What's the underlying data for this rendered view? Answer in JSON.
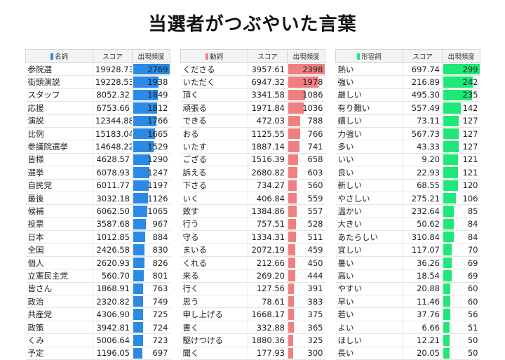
{
  "title": "当選者がつぶやいた言葉",
  "chart_data": [
    {
      "type": "table",
      "headers": [
        "名詞",
        "スコア",
        "出現頻度"
      ],
      "color": "#2a8ae6",
      "rows": [
        {
          "word": "参院選",
          "score": "19928.73",
          "freq": 2769
        },
        {
          "word": "街頭演説",
          "score": "19228.53",
          "freq": 1938
        },
        {
          "word": "スタッフ",
          "score": "8052.32",
          "freq": 1849
        },
        {
          "word": "応援",
          "score": "6753.66",
          "freq": 1812
        },
        {
          "word": "演説",
          "score": "12344.88",
          "freq": 1766
        },
        {
          "word": "比例",
          "score": "15183.04",
          "freq": 1665
        },
        {
          "word": "参議院選挙",
          "score": "14648.22",
          "freq": 1529
        },
        {
          "word": "皆様",
          "score": "4628.57",
          "freq": 1290
        },
        {
          "word": "選挙",
          "score": "6078.93",
          "freq": 1247
        },
        {
          "word": "自民党",
          "score": "6011.77",
          "freq": 1197
        },
        {
          "word": "最後",
          "score": "3032.18",
          "freq": 1126
        },
        {
          "word": "候補",
          "score": "6062.50",
          "freq": 1065
        },
        {
          "word": "投票",
          "score": "3587.68",
          "freq": 967
        },
        {
          "word": "日本",
          "score": "1012.85",
          "freq": 884
        },
        {
          "word": "全国",
          "score": "2426.58",
          "freq": 830
        },
        {
          "word": "個人",
          "score": "2620.93",
          "freq": 826
        },
        {
          "word": "立憲民主党",
          "score": "560.70",
          "freq": 801
        },
        {
          "word": "皆さん",
          "score": "1868.91",
          "freq": 763
        },
        {
          "word": "政治",
          "score": "2320.82",
          "freq": 749
        },
        {
          "word": "共産党",
          "score": "4306.90",
          "freq": 725
        },
        {
          "word": "政策",
          "score": "3942.81",
          "freq": 724
        },
        {
          "word": "くみ",
          "score": "5006.64",
          "freq": 723
        },
        {
          "word": "予定",
          "score": "1196.05",
          "freq": 697
        }
      ]
    },
    {
      "type": "table",
      "headers": [
        "動詞",
        "スコア",
        "出現頻度"
      ],
      "color": "#f08080",
      "rows": [
        {
          "word": "くださる",
          "score": "3957.61",
          "freq": 2398
        },
        {
          "word": "いただく",
          "score": "6947.32",
          "freq": 1978
        },
        {
          "word": "頂く",
          "score": "3341.58",
          "freq": 1086
        },
        {
          "word": "頑張る",
          "score": "1971.84",
          "freq": 1036
        },
        {
          "word": "できる",
          "score": "472.03",
          "freq": 788
        },
        {
          "word": "おる",
          "score": "1125.55",
          "freq": 766
        },
        {
          "word": "いたす",
          "score": "1887.14",
          "freq": 741
        },
        {
          "word": "ござる",
          "score": "1516.39",
          "freq": 658
        },
        {
          "word": "訴える",
          "score": "2680.82",
          "freq": 603
        },
        {
          "word": "下さる",
          "score": "734.27",
          "freq": 560
        },
        {
          "word": "いく",
          "score": "406.84",
          "freq": 559
        },
        {
          "word": "致す",
          "score": "1384.86",
          "freq": 557
        },
        {
          "word": "行う",
          "score": "757.51",
          "freq": 528
        },
        {
          "word": "守る",
          "score": "1334.31",
          "freq": 511
        },
        {
          "word": "まいる",
          "score": "2072.19",
          "freq": 459
        },
        {
          "word": "くれる",
          "score": "212.66",
          "freq": 450
        },
        {
          "word": "来る",
          "score": "269.20",
          "freq": 444
        },
        {
          "word": "行く",
          "score": "127.56",
          "freq": 391
        },
        {
          "word": "思う",
          "score": "78.61",
          "freq": 383
        },
        {
          "word": "申し上げる",
          "score": "1668.17",
          "freq": 375
        },
        {
          "word": "書く",
          "score": "332.88",
          "freq": 365
        },
        {
          "word": "駆けつける",
          "score": "1880.36",
          "freq": 325
        },
        {
          "word": "聞く",
          "score": "177.93",
          "freq": 300
        }
      ]
    },
    {
      "type": "table",
      "headers": [
        "形容詞",
        "スコア",
        "出現頻度"
      ],
      "color": "#1ee878",
      "rows": [
        {
          "word": "熱い",
          "score": "697.74",
          "freq": 299
        },
        {
          "word": "強い",
          "score": "216.89",
          "freq": 242
        },
        {
          "word": "厳しい",
          "score": "495.30",
          "freq": 235
        },
        {
          "word": "有り難い",
          "score": "557.49",
          "freq": 142
        },
        {
          "word": "嬉しい",
          "score": "73.11",
          "freq": 127
        },
        {
          "word": "力強い",
          "score": "567.73",
          "freq": 127
        },
        {
          "word": "多い",
          "score": "43.33",
          "freq": 127
        },
        {
          "word": "いい",
          "score": "9.20",
          "freq": 121
        },
        {
          "word": "良い",
          "score": "22.93",
          "freq": 121
        },
        {
          "word": "新しい",
          "score": "68.55",
          "freq": 120
        },
        {
          "word": "やさしい",
          "score": "275.21",
          "freq": 106
        },
        {
          "word": "温かい",
          "score": "232.64",
          "freq": 85
        },
        {
          "word": "大きい",
          "score": "50.62",
          "freq": 84
        },
        {
          "word": "あたらしい",
          "score": "310.84",
          "freq": 84
        },
        {
          "word": "宜しい",
          "score": "117.07",
          "freq": 70
        },
        {
          "word": "暑い",
          "score": "36.26",
          "freq": 69
        },
        {
          "word": "高い",
          "score": "18.54",
          "freq": 69
        },
        {
          "word": "やすい",
          "score": "20.88",
          "freq": 60
        },
        {
          "word": "早い",
          "score": "11.46",
          "freq": 60
        },
        {
          "word": "若い",
          "score": "37.76",
          "freq": 56
        },
        {
          "word": "よい",
          "score": "6.66",
          "freq": 51
        },
        {
          "word": "ほしい",
          "score": "12.21",
          "freq": 50
        },
        {
          "word": "長い",
          "score": "20.05",
          "freq": 50
        }
      ]
    }
  ]
}
